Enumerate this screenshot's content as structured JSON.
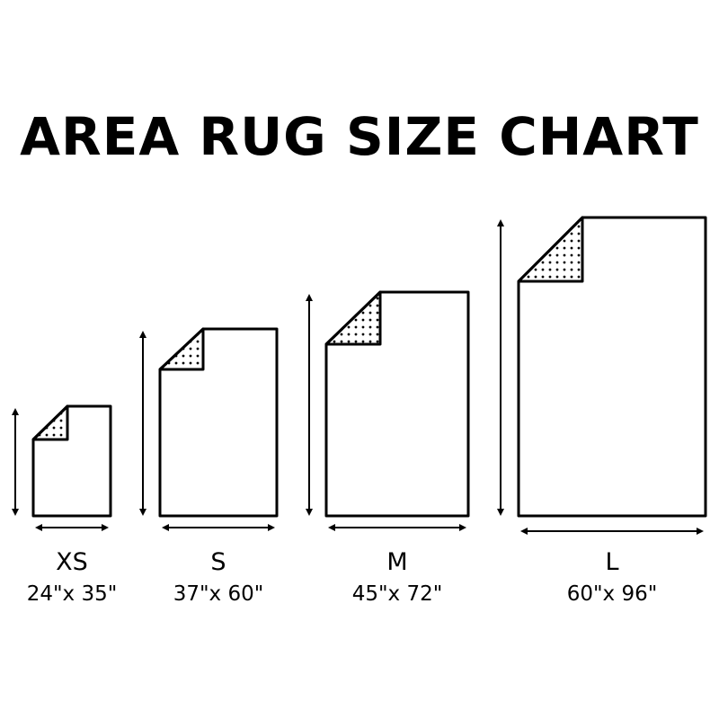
{
  "title": "AREA RUG SIZE CHART",
  "colors": {
    "ink": "#000000",
    "background": "#ffffff"
  },
  "rugs": [
    {
      "size": "XS",
      "dimensions": "24\"x 35\""
    },
    {
      "size": "S",
      "dimensions": "37\"x 60\""
    },
    {
      "size": "M",
      "dimensions": "45\"x 72\""
    },
    {
      "size": "L",
      "dimensions": "60\"x 96\""
    }
  ]
}
